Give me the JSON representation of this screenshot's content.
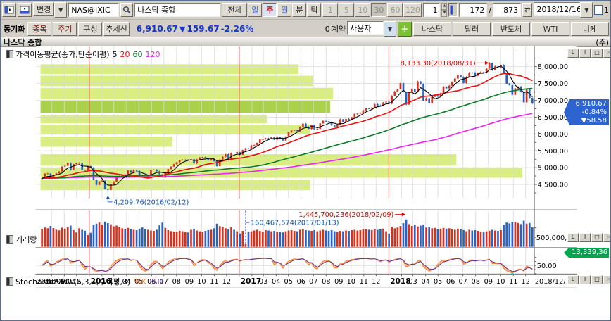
{
  "toolbar1": {
    "change_label": "변경",
    "symbol_code": "NAS@IXIC",
    "symbol_name": "나스닥 종합",
    "period_buttons": [
      "전체",
      "일",
      "주",
      "월",
      "분",
      "틱"
    ],
    "active_period": "주",
    "minute_buttons": [
      "1",
      "5",
      "10",
      "30",
      "60",
      "120"
    ],
    "active_minute": "30",
    "bar_width_value": "1",
    "position_current": "172",
    "position_separator": "/",
    "position_total": "873",
    "date_value": "2018/12/16",
    "right_check_label": "1"
  },
  "toolbar2": {
    "sync_label": "동기화",
    "sync_buttons": [
      "종목",
      "주기",
      "구성",
      "추세선"
    ],
    "price": "6,910.67",
    "arrow": "▼",
    "change": "159.67",
    "change_pct": "-2.26%",
    "contract_count": "0",
    "contract_label": "계약",
    "user_select": "사용자",
    "tabs": [
      "나스닥",
      "달러",
      "반도체",
      "WTI",
      "니케"
    ]
  },
  "chart": {
    "title": "나스닥 종합",
    "unit_label": "(주)",
    "legend_main": {
      "label": "가격이동평균(종가,단순이평)",
      "p5": "5",
      "p20": "20",
      "p60": "60",
      "p120": "120"
    },
    "legend_volume": "거래량",
    "legend_stoch": {
      "label": "StochasticSlow(5,3,지수이평,3)",
      "k": "%K",
      "d": "%D"
    },
    "annotations": {
      "high": "8,133.30(2018/08/31)",
      "low": "4,209.76(2016/02/12)",
      "volume_max": "1,445,700,236(2018/02/09)",
      "volume_min": "160,467,574(2017/01/13)"
    },
    "price_badge": {
      "price": "6,910.67",
      "pct": "-0.84%",
      "change": "▼58.58"
    },
    "volume_badge": "13,339,36",
    "volume_axis_label": "500,000,00",
    "stoch_axis_label": "50.00",
    "pane_buttons": [
      "L",
      "I",
      "□",
      "×"
    ],
    "x_axis": {
      "start": "2015/09/04",
      "end": "2018/12/14",
      "years": [
        "2016",
        "2017",
        "2018"
      ],
      "months": [
        "03",
        "04",
        "05",
        "06",
        "07",
        "08",
        "09",
        "10",
        "11",
        "12"
      ]
    }
  },
  "chart_data": {
    "type": "candlestick",
    "interval": "weekly",
    "x_start": "2015/09/04",
    "x_end": "2018/12/14",
    "visible_bars": 172,
    "total_bars": 873,
    "price_axis": {
      "min": 4500,
      "max": 8000,
      "step": 500
    },
    "volume_axis": {
      "gridline_value_millions": 500
    },
    "ma_periods": [
      5,
      20,
      60,
      120
    ],
    "ma_colors": {
      "5": "#000000",
      "20": "#e81010",
      "60": "#0b7a28",
      "120": "#ee22ee"
    },
    "up_color": "#d9301a",
    "down_color": "#2763c4",
    "closes": [
      4684,
      4822,
      4827,
      4687,
      4781,
      4830,
      4887,
      5032,
      5054,
      5147,
      4928,
      5105,
      5128,
      5142,
      4933,
      4923,
      5049,
      5007,
      4644,
      4488,
      4591,
      4614,
      4363,
      4338,
      4504,
      4590,
      4717,
      4749,
      4795,
      4773,
      4914,
      4851,
      4938,
      4906,
      4775,
      4736,
      4714,
      4770,
      4933,
      4943,
      4895,
      4800,
      4708,
      4863,
      4957,
      5030,
      5100,
      5162,
      5221,
      5233,
      5238,
      5219,
      5250,
      5126,
      5245,
      5306,
      5312,
      5292,
      5214,
      5257,
      5190,
      5046,
      5237,
      5322,
      5399,
      5256,
      5444,
      5437,
      5463,
      5383,
      5521,
      5574,
      5555,
      5661,
      5666,
      5734,
      5838,
      5845,
      5870,
      5862,
      5901,
      5829,
      5912,
      5878,
      5805,
      5911,
      6048,
      6101,
      6121,
      6084,
      6210,
      6306,
      6208,
      6152,
      6265,
      6140,
      6153,
      6312,
      6388,
      6375,
      6352,
      6257,
      6217,
      6266,
      6435,
      6360,
      6448,
      6427,
      6496,
      6590,
      6606,
      6629,
      6701,
      6764,
      6751,
      6783,
      6889,
      6848,
      6840,
      6937,
      6960,
      6903,
      7137,
      7261,
      7336,
      7506,
      7241,
      6874,
      7239,
      7337,
      7258,
      7561,
      7482,
      6993,
      7063,
      6915,
      7107,
      7146,
      7120,
      7210,
      7403,
      7354,
      7434,
      7554,
      7646,
      7746,
      7693,
      7510,
      7688,
      7826,
      7820,
      7737,
      7812,
      7839,
      7816,
      7946,
      8110,
      7902,
      8010,
      7987,
      8046,
      7788,
      7497,
      7449,
      7167,
      7357,
      7407,
      7248,
      6939,
      7331,
      7070,
      6911
    ],
    "volumes_millions": [
      950,
      1020,
      980,
      1100,
      990,
      900,
      870,
      1010,
      960,
      1040,
      1120,
      880,
      760,
      980,
      900,
      850,
      620,
      740,
      1150,
      1220,
      1280,
      1180,
      1330,
      1250,
      1190,
      1080,
      1120,
      1050,
      980,
      950,
      1000,
      940,
      900,
      880,
      960,
      1020,
      940,
      900,
      860,
      840,
      900,
      1130,
      1280,
      1000,
      880,
      830,
      810,
      790,
      850,
      820,
      780,
      760,
      900,
      940,
      860,
      820,
      800,
      840,
      880,
      900,
      980,
      1220,
      1100,
      1050,
      980,
      920,
      1040,
      900,
      820,
      700,
      840,
      160,
      800,
      820,
      860,
      900,
      840,
      800,
      880,
      860,
      820,
      840,
      800,
      780,
      760,
      820,
      860,
      880,
      840,
      820,
      900,
      940,
      880,
      860,
      840,
      880,
      820,
      860,
      900,
      860,
      840,
      880,
      820,
      800,
      840,
      820,
      860,
      840,
      880,
      900,
      860,
      880,
      920,
      940,
      900,
      880,
      920,
      900,
      940,
      960,
      820,
      700,
      1050,
      980,
      1020,
      1100,
      1250,
      1446,
      1200,
      1100,
      1150,
      1080,
      1120,
      1180,
      1020,
      1060,
      980,
      1000,
      940,
      960,
      1000,
      960,
      980,
      940,
      900,
      960,
      920,
      880,
      820,
      900,
      860,
      880,
      840,
      800,
      780,
      820,
      850,
      900,
      860,
      840,
      880,
      1150,
      1280,
      1240,
      1320,
      1300,
      1260,
      1200,
      1380,
      1220,
      1260,
      1030
    ],
    "markers": {
      "low": {
        "index": 23,
        "price": 4209.76,
        "date": "2016/02/12"
      },
      "high": {
        "index": 156,
        "price": 8133.3,
        "date": "2018/08/31"
      },
      "volume_max": {
        "index": 127,
        "value": 1445700236,
        "date": "2018/02/09"
      },
      "volume_min": {
        "index": 71,
        "value": 160467574,
        "date": "2017/01/13"
      }
    },
    "volume_profile": [
      {
        "hi": 8070,
        "lo": 7780,
        "end_index": 90
      },
      {
        "hi": 7730,
        "lo": 7420,
        "end_index": 95
      },
      {
        "hi": 7370,
        "lo": 7030,
        "end_index": 102
      },
      {
        "hi": 6980,
        "lo": 6630,
        "end_index": 101,
        "dark": true
      },
      {
        "hi": 6570,
        "lo": 6320,
        "end_index": 79
      },
      {
        "hi": 6270,
        "lo": 5980,
        "end_index": 94
      },
      {
        "hi": 5920,
        "lo": 5620,
        "end_index": 46
      },
      {
        "hi": 5400,
        "lo": 5060,
        "end_index": 145
      },
      {
        "hi": 5000,
        "lo": 4700,
        "end_index": 168
      },
      {
        "hi": 4640,
        "lo": 4330,
        "end_index": 94
      }
    ],
    "year_boundaries": [
      "2016-01-01",
      "2017-01-01",
      "2018-01-01"
    ],
    "dashed_line_index": 71,
    "stochastic": {
      "params": "5,3,3",
      "k_color": "#ff7b30",
      "d_color": "#5a2d91"
    }
  }
}
